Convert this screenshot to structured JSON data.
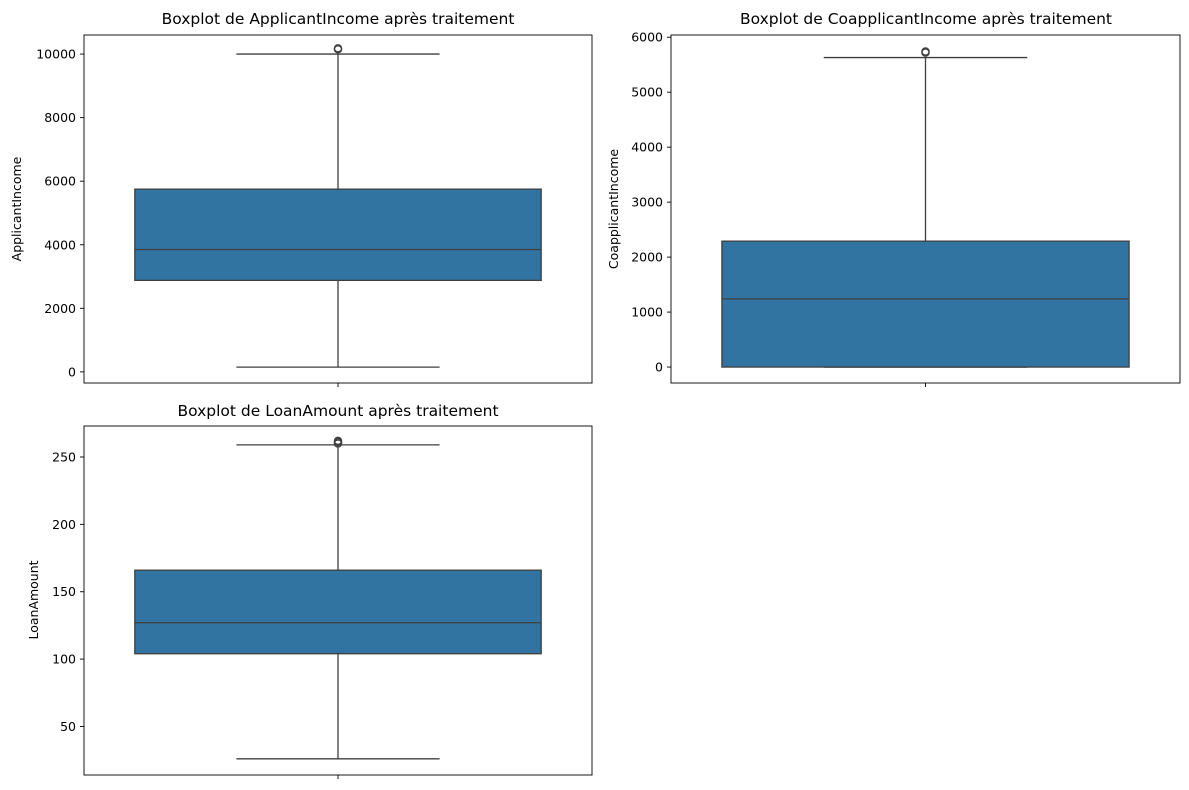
{
  "colors": {
    "box_fill": "#3274a1",
    "line": "#3f3f3f",
    "axes": "#000000",
    "background": "#ffffff"
  },
  "chart_data": [
    {
      "type": "boxplot",
      "title": "Boxplot de ApplicantIncome après traitement",
      "ylabel": "ApplicantIncome",
      "ylim": [
        -350,
        10600
      ],
      "yticks": [
        0,
        2000,
        4000,
        6000,
        8000,
        10000
      ],
      "stats": {
        "whisker_low": 150,
        "q1": 2880,
        "median": 3850,
        "q3": 5750,
        "whisker_high": 10000
      },
      "outliers": [
        10150,
        10180
      ]
    },
    {
      "type": "boxplot",
      "title": "Boxplot de CoapplicantIncome après traitement",
      "ylabel": "CoapplicantIncome",
      "ylim": [
        -290,
        6040
      ],
      "yticks": [
        0,
        1000,
        2000,
        3000,
        4000,
        5000,
        6000
      ],
      "stats": {
        "whisker_low": 0,
        "q1": 0,
        "median": 1240,
        "q3": 2290,
        "whisker_high": 5630
      },
      "outliers": [
        5720,
        5740
      ]
    },
    {
      "type": "boxplot",
      "title": "Boxplot de LoanAmount après traitement",
      "ylabel": "LoanAmount",
      "ylim": [
        14,
        273
      ],
      "yticks": [
        50,
        100,
        150,
        200,
        250
      ],
      "stats": {
        "whisker_low": 26,
        "q1": 104,
        "median": 127,
        "q3": 166,
        "whisker_high": 259
      },
      "outliers": [
        260,
        261,
        262
      ]
    }
  ]
}
